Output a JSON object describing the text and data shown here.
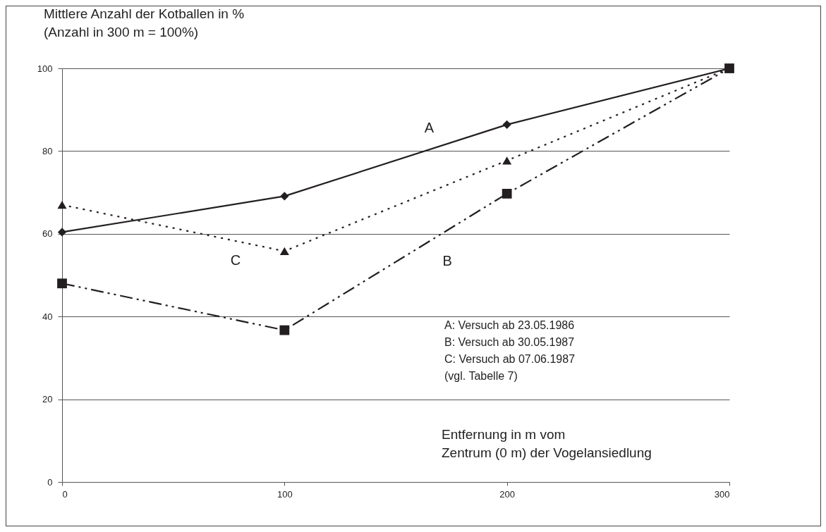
{
  "chart_data": {
    "type": "line",
    "ylabel": "Mittlere Anzahl der Kotballen in %\n(Anzahl in 300 m = 100%)",
    "xlabel": "Entfernung in m vom\nZentrum (0 m) der Vogelansiedlung",
    "x": [
      0,
      100,
      200,
      300
    ],
    "series": [
      {
        "name": "A",
        "color": "#231f20",
        "values": [
          60.4,
          69.1,
          86.4,
          100
        ],
        "marker": "diamond",
        "line_style": "solid"
      },
      {
        "name": "B",
        "color": "#231f20",
        "values": [
          48,
          36.7,
          69.7,
          100
        ],
        "marker": "square",
        "line_style": "dashed"
      },
      {
        "name": "C",
        "color": "#231f20",
        "values": [
          67,
          55.8,
          77.7,
          100
        ],
        "marker": "triangle",
        "line_style": "dotted"
      }
    ],
    "xlim": [
      0,
      300
    ],
    "xticks": [
      0,
      100,
      200,
      300
    ],
    "ylim": [
      0,
      100
    ],
    "yticks": [
      0,
      20,
      40,
      60,
      80,
      100
    ],
    "grid": "y",
    "annotations": [
      "A: Versuch ab 23.05.1986",
      "B: Versuch ab 30.05.1987",
      "C: Versuch ab 07.06.1987",
      "(vgl. Tabelle 7)"
    ]
  }
}
